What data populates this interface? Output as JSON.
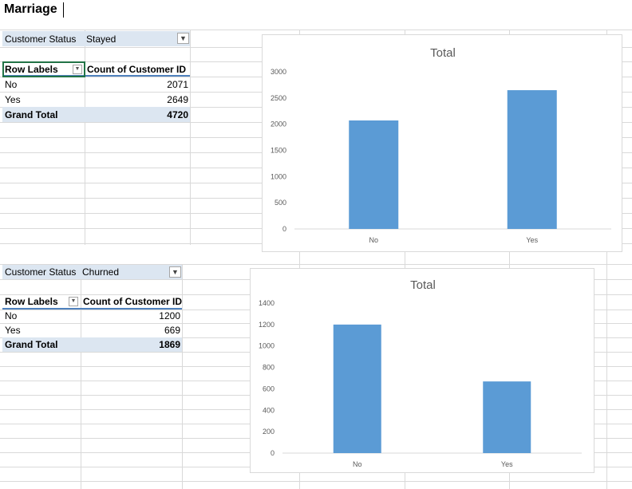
{
  "sheet_title": "Marriage",
  "pivots": [
    {
      "filter_label": "Customer Status",
      "filter_value": "Stayed",
      "header_row_labels": "Row Labels",
      "header_count": "Count of Customer ID",
      "rows": [
        {
          "label": "No",
          "value": "2071"
        },
        {
          "label": "Yes",
          "value": "2649"
        }
      ],
      "total_label": "Grand Total",
      "total_value": "4720"
    },
    {
      "filter_label": "Customer Status",
      "filter_value": "Churned",
      "header_row_labels": "Row Labels",
      "header_count": "Count of Customer ID",
      "rows": [
        {
          "label": "No",
          "value": "1200"
        },
        {
          "label": "Yes",
          "value": "669"
        }
      ],
      "total_label": "Grand Total",
      "total_value": "1869"
    }
  ],
  "colors": {
    "bar": "#5b9bd5",
    "pivot_band": "#dce6f1",
    "pivot_header_border": "#4f81bd",
    "gridline": "#d9d9d9"
  },
  "chart_data": [
    {
      "type": "bar",
      "title": "Total",
      "categories": [
        "No",
        "Yes"
      ],
      "values": [
        2071,
        2649
      ],
      "ylim": [
        0,
        3000
      ],
      "yticks": [
        0,
        500,
        1000,
        1500,
        2000,
        2500,
        3000
      ],
      "grid": false,
      "legend": "none"
    },
    {
      "type": "bar",
      "title": "Total",
      "categories": [
        "No",
        "Yes"
      ],
      "values": [
        1200,
        669
      ],
      "ylim": [
        0,
        1400
      ],
      "yticks": [
        0,
        200,
        400,
        600,
        800,
        1000,
        1200,
        1400
      ],
      "grid": false,
      "legend": "none"
    }
  ]
}
